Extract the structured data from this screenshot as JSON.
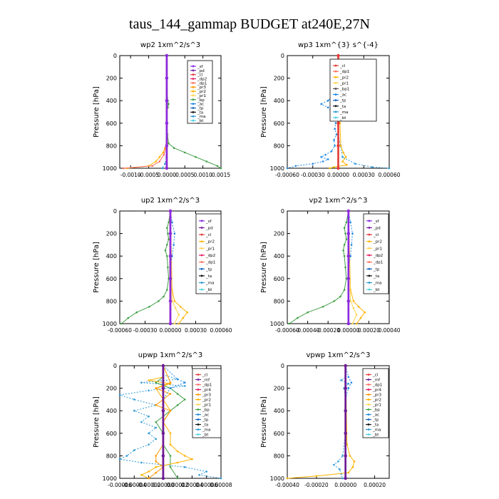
{
  "figure_title": "taus_144_gammap  BUDGET at240E,27N",
  "colors": {
    "_sf": "#8a2be2",
    "_pd": "#7b1fa2",
    "_cl": "#e53935",
    "_dp2": "#e91e63",
    "_dp1": "#ff6f61",
    "_pr3": "#ff9800",
    "_pr2": "#ffb300",
    "_pr1": "#ffd54f",
    "_bp": "#43a047",
    "_ac": "#1e88e5",
    "_tp": "#1565c0",
    "_ta": "#111111",
    "_ma": "#2e9bd6",
    "_bt": "#4dd0e1",
    "_mf": "#6a1b9a",
    "_pr4": "#d81b60"
  },
  "chart_data": [
    {
      "type": "line",
      "title": "wp2   1xm^2/s^3",
      "ylabel": "Pressure [hPa]",
      "ylim": [
        1000,
        0
      ],
      "xlim": [
        -0.0013,
        0.0015
      ],
      "xticks": [
        -0.001,
        -0.0005,
        0.0,
        0.0005,
        0.001,
        0.0015
      ],
      "xtick_labels": [
        "-0.0010",
        "-0.0005",
        "0.0000",
        "0.0005",
        "0.0010",
        "0.0015"
      ],
      "yticks": [
        0,
        200,
        400,
        600,
        800,
        1000
      ],
      "legend": [
        "_sf",
        "_pd",
        "_cl",
        "_dp2",
        "_dp1",
        "_pr3",
        "_pr2",
        "_pr1",
        "_bp",
        "_ac",
        "_tp",
        "_ta",
        "_ma",
        "_bt"
      ],
      "series": [
        {
          "name": "_bp",
          "y": [
            0,
            100,
            200,
            300,
            400,
            430,
            460,
            500,
            600,
            700,
            780,
            820,
            860,
            900,
            940,
            980,
            1000
          ],
          "x": [
            0,
            0,
            0,
            0,
            3e-05,
            5e-05,
            3e-05,
            0,
            0,
            2e-05,
            5e-05,
            0.0002,
            0.0005,
            0.0008,
            0.0011,
            0.0014,
            0.0015
          ]
        },
        {
          "name": "_pr2",
          "y": [
            0,
            600,
            780,
            820,
            860,
            900,
            940,
            980,
            1000
          ],
          "x": [
            0,
            0,
            1e-05,
            -5e-05,
            -0.0001,
            -0.0002,
            -0.0003,
            -0.0005,
            -0.0011
          ]
        },
        {
          "name": "_dp1",
          "y": [
            0,
            700,
            820,
            880,
            940,
            980,
            1000
          ],
          "x": [
            0,
            0,
            -3e-05,
            -8e-05,
            -0.0002,
            -0.0004,
            -0.0012
          ]
        },
        {
          "name": "_ma",
          "y": [
            0,
            800,
            900,
            960,
            1000
          ],
          "x": [
            0,
            0,
            -1e-05,
            -5e-05,
            -0.00012
          ]
        },
        {
          "name": "_cl",
          "y": [
            0,
            200,
            400,
            600,
            800,
            1000
          ],
          "x": [
            0,
            0,
            0,
            0,
            0,
            0
          ]
        },
        {
          "name": "_sf",
          "y": [
            0,
            200,
            400,
            600,
            800,
            1000
          ],
          "x": [
            0,
            0,
            0,
            0,
            0,
            0
          ]
        }
      ]
    },
    {
      "type": "line",
      "title": "wp3   1xm^{3} s^{-4}",
      "ylabel": "Pressure [hPa]",
      "ylim": [
        1000,
        0
      ],
      "xlim": [
        -0.0006,
        0.0006
      ],
      "xticks": [
        -0.0006,
        -0.0003,
        0.0,
        0.0003,
        0.0006
      ],
      "xtick_labels": [
        "-0.00060",
        "-0.00030",
        "0.00000",
        "0.00030",
        "0.00060"
      ],
      "yticks": [
        0,
        200,
        400,
        600,
        800,
        1000
      ],
      "legend": [
        "_cl",
        "_dp1",
        "_pr2",
        "_pr1",
        "_bp1",
        "_ac",
        "_tp",
        "_ta",
        "_ma",
        "_bt"
      ],
      "series": [
        {
          "name": "_ac",
          "y": [
            0,
            200,
            300,
            350,
            400,
            430,
            460,
            500,
            550,
            600,
            650,
            700,
            750,
            800,
            850,
            880,
            900,
            920,
            940,
            960,
            980,
            1000
          ],
          "x": [
            0,
            0,
            -2e-05,
            -6e-05,
            -0.00012,
            -0.0002,
            -0.00012,
            -8e-05,
            -5e-05,
            -3e-05,
            -4e-05,
            -2e-05,
            -5e-05,
            -4e-05,
            -8e-05,
            -0.00015,
            -0.0002,
            -0.00012,
            -0.00018,
            -0.0003,
            -0.0005,
            -0.0006
          ]
        },
        {
          "name": "_ma",
          "y": [
            0,
            700,
            900,
            960,
            990,
            1000
          ],
          "x": [
            0,
            0,
            5e-05,
            0.0002,
            0.0004,
            0.0006
          ]
        },
        {
          "name": "_pr2",
          "y": [
            0,
            400,
            600,
            800,
            860,
            900,
            940,
            970,
            990,
            1000
          ],
          "x": [
            0,
            3e-05,
            2e-05,
            3e-05,
            6e-05,
            9e-05,
            5e-05,
            0.0001,
            -5e-05,
            -0.0001
          ]
        },
        {
          "name": "_cl",
          "y": [
            0,
            200,
            400,
            600,
            800,
            1000
          ],
          "x": [
            0,
            0,
            0,
            0,
            0,
            0
          ]
        }
      ]
    },
    {
      "type": "line",
      "title": "up2   1xm^2/s^3",
      "ylabel": "Pressure [hPa]",
      "ylim": [
        1000,
        0
      ],
      "xlim": [
        -0.0006,
        0.0006
      ],
      "xticks": [
        -0.0006,
        -0.0003,
        0.0,
        0.0003,
        0.0006
      ],
      "xtick_labels": [
        "-0.00060",
        "-0.00030",
        "0.00000",
        "0.00030",
        "0.00060"
      ],
      "yticks": [
        0,
        200,
        400,
        600,
        800,
        1000
      ],
      "legend": [
        "_sf",
        "_pd",
        "_cl",
        "_pr2",
        "_pr1",
        "_dp2",
        "_dp1",
        "_tp",
        "_ta",
        "_ma",
        "_bt"
      ],
      "series": [
        {
          "name": "_bp",
          "y": [
            0,
            100,
            150,
            200,
            250,
            300,
            350,
            400,
            500,
            600,
            700,
            760,
            800,
            850,
            900,
            950,
            1000
          ],
          "x": [
            0,
            -2e-05,
            -4e-05,
            -3e-05,
            -2e-05,
            -4e-05,
            -6e-05,
            -4e-05,
            -3e-05,
            -2e-05,
            -4e-05,
            -8e-05,
            -0.00014,
            -0.00025,
            -0.0004,
            -0.0005,
            -0.00058
          ]
        },
        {
          "name": "_pr2",
          "y": [
            0,
            700,
            800,
            850,
            900,
            950,
            1000
          ],
          "x": [
            0,
            2e-05,
            5e-05,
            0.00012,
            0.0002,
            0.00015,
            0.0001
          ]
        },
        {
          "name": "_pr1",
          "y": [
            0,
            800,
            860,
            920,
            1000
          ],
          "x": [
            0,
            2e-05,
            6e-05,
            0.0001,
            5e-05
          ]
        },
        {
          "name": "_ac",
          "y": [
            0,
            100,
            200,
            300,
            400,
            500,
            1000
          ],
          "x": [
            0,
            2e-05,
            5e-05,
            4e-05,
            2e-05,
            0,
            0
          ]
        },
        {
          "name": "_cl",
          "y": [
            0,
            200,
            400,
            600,
            800,
            1000
          ],
          "x": [
            0,
            0,
            0,
            0,
            0,
            0
          ]
        },
        {
          "name": "_sf",
          "y": [
            0,
            200,
            400,
            600,
            800,
            1000
          ],
          "x": [
            0,
            0,
            0,
            0,
            0,
            0
          ]
        }
      ]
    },
    {
      "type": "line",
      "title": "vp2   1xm^2/s^3",
      "ylabel": "Pressure [hPa]",
      "ylim": [
        1000,
        0
      ],
      "xlim": [
        -0.0006,
        0.0004
      ],
      "xticks": [
        -0.0006,
        -0.0004,
        -0.0002,
        0.0,
        0.0002,
        0.0004
      ],
      "xtick_labels": [
        "-0.00060",
        "-0.00040",
        "-0.00020",
        "0.00000",
        "0.00020",
        "0.00040"
      ],
      "yticks": [
        0,
        200,
        400,
        600,
        800,
        1000
      ],
      "legend": [
        "_sf",
        "_pd",
        "_cl",
        "_pr2",
        "_pr1",
        "_dp2",
        "_dp1",
        "_tp",
        "_ta",
        "_ma",
        "_bt"
      ],
      "series": [
        {
          "name": "_bp",
          "y": [
            0,
            100,
            150,
            200,
            250,
            300,
            350,
            400,
            500,
            600,
            700,
            760,
            800,
            850,
            900,
            950,
            1000
          ],
          "x": [
            0,
            -2e-05,
            -4e-05,
            -3e-05,
            -2e-05,
            -4e-05,
            -5e-05,
            -4e-05,
            -3e-05,
            -2e-05,
            -4e-05,
            -8e-05,
            -0.00014,
            -0.00025,
            -0.0004,
            -0.0005,
            -0.00058
          ]
        },
        {
          "name": "_pr2",
          "y": [
            0,
            700,
            800,
            850,
            900,
            950,
            1000
          ],
          "x": [
            0,
            2e-05,
            5e-05,
            0.0001,
            0.00016,
            0.00012,
            8e-05
          ]
        },
        {
          "name": "_pr1",
          "y": [
            0,
            800,
            860,
            920,
            1000
          ],
          "x": [
            0,
            2e-05,
            5e-05,
            8e-05,
            4e-05
          ]
        },
        {
          "name": "_ac",
          "y": [
            0,
            100,
            200,
            300,
            400,
            500,
            1000
          ],
          "x": [
            0,
            2e-05,
            4e-05,
            3e-05,
            2e-05,
            0,
            0
          ]
        },
        {
          "name": "_cl",
          "y": [
            0,
            200,
            400,
            600,
            800,
            1000
          ],
          "x": [
            0,
            0,
            0,
            0,
            0,
            0
          ]
        },
        {
          "name": "_sf",
          "y": [
            0,
            200,
            400,
            600,
            800,
            1000
          ],
          "x": [
            0,
            0,
            0,
            0,
            0,
            0
          ]
        }
      ]
    },
    {
      "type": "line",
      "title": "upwp   1xm^2/s^3",
      "ylabel": "Pressure [hPa]",
      "ylim": [
        1000,
        0
      ],
      "xlim": [
        -6e-05,
        8e-05
      ],
      "xticks": [
        -6e-05,
        -4e-05,
        -2e-05,
        0.0,
        2e-05,
        4e-05,
        6e-05,
        8e-05
      ],
      "xtick_labels": [
        "-0.00006",
        "-0.00004",
        "-0.00002",
        "0.00000",
        "0.00002",
        "0.00004",
        "0.00006",
        "0.00008"
      ],
      "yticks": [
        0,
        200,
        400,
        600,
        800,
        1000
      ],
      "legend": [
        "_cl",
        "_mf",
        "_dp1",
        "_pr4",
        "_pr3",
        "_pr2",
        "_pr1",
        "_bp",
        "_ac",
        "_tp",
        "_ta",
        "_ma",
        "_bt"
      ],
      "series": [
        {
          "name": "_ma",
          "y": [
            0,
            80,
            120,
            150,
            180,
            220,
            260,
            300,
            350,
            400,
            450,
            500,
            550,
            600,
            650,
            700,
            750,
            800,
            830,
            860,
            900,
            940,
            970,
            1000
          ],
          "x": [
            0,
            0,
            2e-05,
            -3e-05,
            3e-05,
            -2e-05,
            -6e-05,
            -4e-05,
            -1e-05,
            -4e-05,
            -2e-05,
            -3e-05,
            -1e-05,
            -2e-05,
            -1e-05,
            -2e-05,
            -4e-05,
            -5e-05,
            -6e-05,
            -3e-05,
            3e-05,
            6e-05,
            5e-05,
            8e-05
          ]
        },
        {
          "name": "_bp",
          "y": [
            0,
            100,
            150,
            200,
            250,
            300,
            350,
            400,
            450,
            500,
            600,
            700,
            800,
            900,
            1000
          ],
          "x": [
            0,
            0,
            -1e-05,
            1e-05,
            2e-05,
            3e-05,
            2e-05,
            1e-05,
            0,
            -1e-05,
            0,
            0,
            1e-05,
            1e-05,
            2e-05
          ]
        },
        {
          "name": "_pr2",
          "y": [
            0,
            100,
            130,
            160,
            200,
            300,
            400,
            500,
            600,
            700,
            760,
            800,
            830,
            860,
            900,
            940,
            970,
            1000
          ],
          "x": [
            0,
            0,
            -2e-05,
            1e-05,
            -1e-05,
            0,
            1e-05,
            0,
            1e-05,
            1e-05,
            2e-05,
            3e-05,
            4e-05,
            2e-05,
            -1e-05,
            -2e-05,
            -3e-05,
            -2e-05
          ]
        },
        {
          "name": "_pr3",
          "y": [
            0,
            150,
            200,
            250,
            300,
            350,
            400,
            500,
            700,
            800,
            850,
            900,
            950,
            1000
          ],
          "x": [
            0,
            1e-05,
            -1e-05,
            1e-05,
            0,
            -1e-05,
            1e-05,
            0,
            0,
            -1e-05,
            -1e-05,
            0,
            -1e-05,
            -2e-05
          ]
        },
        {
          "name": "_ac",
          "y": [
            0,
            120,
            150,
            200,
            300,
            400,
            600,
            800,
            1000
          ],
          "x": [
            0,
            2e-05,
            3e-05,
            1e-05,
            0,
            0,
            0,
            0,
            0
          ]
        },
        {
          "name": "_cl",
          "y": [
            0,
            200,
            400,
            600,
            800,
            1000
          ],
          "x": [
            0,
            0,
            0,
            0,
            0,
            0
          ]
        },
        {
          "name": "_mf",
          "y": [
            0,
            200,
            400,
            600,
            800,
            1000
          ],
          "x": [
            0,
            0,
            0,
            0,
            0,
            0
          ]
        }
      ]
    },
    {
      "type": "line",
      "title": "vpwp   1xm^2/s^3",
      "ylabel": "Pressure [hPa]",
      "ylim": [
        1000,
        0
      ],
      "xlim": [
        -0.0004,
        0.0003
      ],
      "xticks": [
        -0.0004,
        -0.0002,
        0.0,
        0.0002
      ],
      "xtick_labels": [
        "-0.00040",
        "-0.00020",
        "0.00000",
        "0.00020"
      ],
      "yticks": [
        0,
        200,
        400,
        600,
        800,
        1000
      ],
      "legend": [
        "_cl",
        "_mf",
        "_dp1",
        "_pr4",
        "_pr3",
        "_pr2",
        "_pr1",
        "_bp",
        "_ac",
        "_tp",
        "_ta",
        "_ma",
        "_bt"
      ],
      "series": [
        {
          "name": "_ma",
          "y": [
            0,
            100,
            130,
            160,
            200,
            300,
            600,
            800,
            850,
            880,
            920,
            960,
            1000
          ],
          "x": [
            0,
            0,
            -3e-05,
            2e-05,
            -1e-05,
            0,
            0,
            -2e-05,
            -5e-05,
            -8e-05,
            -4e-05,
            -3e-05,
            -2e-05
          ]
        },
        {
          "name": "_pr2",
          "y": [
            0,
            700,
            800,
            850,
            900,
            950,
            980,
            1000
          ],
          "x": [
            0,
            1e-05,
            3e-05,
            6e-05,
            5e-05,
            2e-05,
            -0.0002,
            -0.0004
          ]
        },
        {
          "name": "_ac",
          "y": [
            0,
            100,
            150,
            200,
            300,
            1000
          ],
          "x": [
            0,
            2e-05,
            4e-05,
            2e-05,
            0,
            0
          ]
        },
        {
          "name": "_cl",
          "y": [
            0,
            200,
            400,
            600,
            800,
            1000
          ],
          "x": [
            0,
            0,
            0,
            0,
            0,
            0
          ]
        },
        {
          "name": "_mf",
          "y": [
            0,
            200,
            400,
            600,
            800,
            1000
          ],
          "x": [
            0,
            0,
            0,
            0,
            0,
            0
          ]
        }
      ]
    }
  ]
}
